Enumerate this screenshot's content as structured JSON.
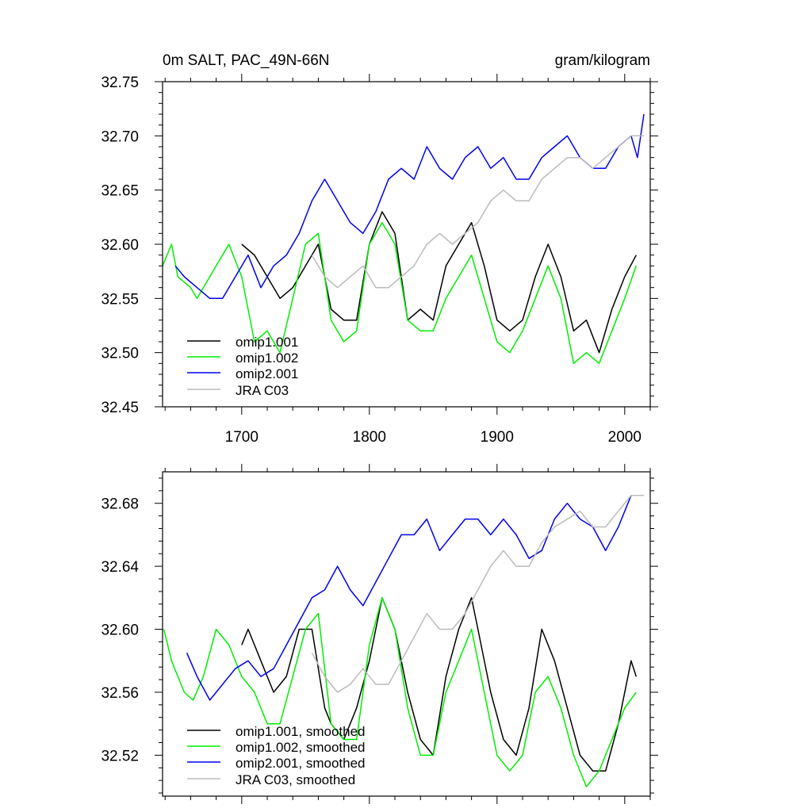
{
  "colors": {
    "omip1_001": "#000000",
    "omip1_002": "#00ee00",
    "omip2_001": "#0000ee",
    "jra": "#bbbbbb",
    "axis": "#000000",
    "background": "#ffffff"
  },
  "chart_data": [
    {
      "type": "line",
      "title": "0m SALT, PAC_49N-66N",
      "units": "gram/kilogram",
      "xlim": [
        1638,
        2020
      ],
      "ylim": [
        32.45,
        32.75
      ],
      "xticks": [
        1700,
        1800,
        1900,
        2000
      ],
      "xtick_labels": [
        "1700",
        "1800",
        "1900",
        "2000"
      ],
      "yticks": [
        32.45,
        32.5,
        32.55,
        32.6,
        32.65,
        32.7,
        32.75
      ],
      "ytick_labels": [
        "32.45",
        "32.50",
        "32.55",
        "32.60",
        "32.65",
        "32.70",
        "32.75"
      ],
      "legend": "bottom-left",
      "series": [
        {
          "name": "omip1.001",
          "key": "omip1_001",
          "x": [
            1700,
            1710,
            1720,
            1730,
            1740,
            1750,
            1760,
            1770,
            1780,
            1790,
            1800,
            1810,
            1820,
            1830,
            1840,
            1850,
            1860,
            1870,
            1880,
            1890,
            1900,
            1910,
            1920,
            1930,
            1940,
            1950,
            1960,
            1970,
            1980,
            1990,
            2000,
            2009
          ],
          "values": [
            32.6,
            32.59,
            32.57,
            32.55,
            32.56,
            32.58,
            32.6,
            32.54,
            32.53,
            32.53,
            32.6,
            32.63,
            32.61,
            32.53,
            32.54,
            32.53,
            32.58,
            32.6,
            32.62,
            32.58,
            32.53,
            32.52,
            32.53,
            32.57,
            32.6,
            32.57,
            32.52,
            32.53,
            32.5,
            32.54,
            32.57,
            32.59
          ]
        },
        {
          "name": "omip1.002",
          "key": "omip1_002",
          "x": [
            1638,
            1645,
            1650,
            1660,
            1665,
            1670,
            1680,
            1690,
            1700,
            1710,
            1720,
            1730,
            1740,
            1750,
            1760,
            1770,
            1780,
            1790,
            1800,
            1810,
            1820,
            1830,
            1840,
            1850,
            1860,
            1870,
            1880,
            1890,
            1900,
            1910,
            1920,
            1930,
            1940,
            1950,
            1960,
            1970,
            1980,
            1990,
            2000,
            2009
          ],
          "values": [
            32.58,
            32.6,
            32.57,
            32.56,
            32.55,
            32.56,
            32.58,
            32.6,
            32.57,
            32.51,
            32.52,
            32.5,
            32.55,
            32.6,
            32.61,
            32.53,
            32.51,
            32.52,
            32.6,
            32.62,
            32.6,
            32.53,
            32.52,
            32.52,
            32.55,
            32.57,
            32.59,
            32.55,
            32.51,
            32.5,
            32.52,
            32.55,
            32.58,
            32.55,
            32.49,
            32.5,
            32.49,
            32.52,
            32.55,
            32.58
          ]
        },
        {
          "name": "omip2.001",
          "key": "omip2_001",
          "x": [
            1648,
            1655,
            1665,
            1675,
            1685,
            1695,
            1705,
            1715,
            1725,
            1735,
            1745,
            1755,
            1765,
            1775,
            1785,
            1795,
            1805,
            1815,
            1825,
            1835,
            1845,
            1855,
            1865,
            1875,
            1885,
            1895,
            1905,
            1915,
            1925,
            1935,
            1945,
            1955,
            1965,
            1975,
            1985,
            1995,
            2005,
            2010,
            2015
          ],
          "values": [
            32.58,
            32.57,
            32.56,
            32.55,
            32.55,
            32.57,
            32.59,
            32.56,
            32.58,
            32.59,
            32.61,
            32.64,
            32.66,
            32.64,
            32.62,
            32.61,
            32.63,
            32.66,
            32.67,
            32.66,
            32.69,
            32.67,
            32.66,
            32.68,
            32.69,
            32.67,
            32.68,
            32.66,
            32.66,
            32.68,
            32.69,
            32.7,
            32.68,
            32.67,
            32.67,
            32.69,
            32.7,
            32.68,
            32.72
          ]
        },
        {
          "name": "JRA C03",
          "key": "jra",
          "x": [
            1755,
            1765,
            1775,
            1785,
            1795,
            1805,
            1815,
            1825,
            1835,
            1845,
            1855,
            1865,
            1875,
            1885,
            1895,
            1905,
            1915,
            1925,
            1935,
            1945,
            1955,
            1965,
            1975,
            1985,
            1995,
            2005,
            2015
          ],
          "values": [
            32.59,
            32.57,
            32.56,
            32.57,
            32.58,
            32.56,
            32.56,
            32.57,
            32.58,
            32.6,
            32.61,
            32.6,
            32.61,
            32.62,
            32.64,
            32.65,
            32.64,
            32.64,
            32.66,
            32.67,
            32.68,
            32.68,
            32.67,
            32.68,
            32.69,
            32.7,
            32.7
          ]
        }
      ]
    },
    {
      "type": "line",
      "title": "",
      "xlim": [
        1638,
        2020
      ],
      "ylim": [
        32.494,
        32.7
      ],
      "xticks": [
        1700,
        1800,
        1900,
        2000
      ],
      "yticks": [
        32.52,
        32.56,
        32.6,
        32.64,
        32.68
      ],
      "ytick_labels": [
        "32.52",
        "32.56",
        "32.60",
        "32.64",
        "32.68"
      ],
      "legend": "bottom-left",
      "series": [
        {
          "name": "omip1.001, smoothed",
          "key": "omip1_001",
          "x": [
            1700,
            1705,
            1715,
            1725,
            1735,
            1745,
            1755,
            1765,
            1770,
            1780,
            1790,
            1800,
            1810,
            1815,
            1820,
            1830,
            1840,
            1850,
            1860,
            1870,
            1880,
            1885,
            1895,
            1905,
            1915,
            1925,
            1935,
            1945,
            1955,
            1965,
            1975,
            1985,
            1995,
            2005,
            2009
          ],
          "values": [
            32.59,
            32.6,
            32.58,
            32.56,
            32.57,
            32.6,
            32.6,
            32.55,
            32.54,
            32.53,
            32.55,
            32.58,
            32.62,
            32.61,
            32.6,
            32.56,
            32.53,
            32.52,
            32.57,
            32.6,
            32.62,
            32.6,
            32.56,
            32.53,
            32.52,
            32.55,
            32.6,
            32.58,
            32.55,
            32.52,
            32.51,
            32.51,
            32.54,
            32.58,
            32.57
          ]
        },
        {
          "name": "omip1.002, smoothed",
          "key": "omip1_002",
          "x": [
            1639,
            1645,
            1650,
            1655,
            1662,
            1670,
            1680,
            1690,
            1700,
            1710,
            1720,
            1730,
            1740,
            1750,
            1760,
            1770,
            1780,
            1790,
            1800,
            1810,
            1815,
            1820,
            1830,
            1840,
            1850,
            1860,
            1870,
            1880,
            1890,
            1900,
            1910,
            1920,
            1930,
            1940,
            1950,
            1960,
            1970,
            1980,
            1990,
            2000,
            2009
          ],
          "values": [
            32.6,
            32.58,
            32.57,
            32.56,
            32.555,
            32.57,
            32.6,
            32.59,
            32.57,
            32.56,
            32.54,
            32.54,
            32.57,
            32.6,
            32.61,
            32.54,
            32.53,
            32.53,
            32.59,
            32.62,
            32.61,
            32.6,
            32.55,
            32.52,
            32.52,
            32.56,
            32.58,
            32.6,
            32.56,
            32.52,
            32.51,
            32.52,
            32.56,
            32.57,
            32.55,
            32.52,
            32.5,
            32.51,
            32.53,
            32.55,
            32.56
          ]
        },
        {
          "name": "omip2.001, smoothed",
          "key": "omip2_001",
          "x": [
            1657,
            1665,
            1675,
            1685,
            1695,
            1705,
            1715,
            1725,
            1735,
            1745,
            1755,
            1765,
            1775,
            1785,
            1795,
            1805,
            1815,
            1825,
            1835,
            1845,
            1855,
            1865,
            1875,
            1885,
            1895,
            1905,
            1915,
            1925,
            1935,
            1945,
            1955,
            1965,
            1975,
            1985,
            1995,
            2005,
            2015
          ],
          "values": [
            32.585,
            32.57,
            32.555,
            32.565,
            32.575,
            32.58,
            32.57,
            32.575,
            32.59,
            32.605,
            32.62,
            32.625,
            32.64,
            32.625,
            32.615,
            32.63,
            32.645,
            32.66,
            32.66,
            32.67,
            32.65,
            32.66,
            32.67,
            32.67,
            32.66,
            32.67,
            32.66,
            32.645,
            32.65,
            32.67,
            32.68,
            32.67,
            32.665,
            32.65,
            32.665,
            32.685,
            32.685
          ]
        },
        {
          "name": "JRA C03, smoothed",
          "key": "jra",
          "x": [
            1755,
            1765,
            1775,
            1785,
            1795,
            1805,
            1815,
            1825,
            1835,
            1845,
            1855,
            1865,
            1875,
            1885,
            1895,
            1905,
            1915,
            1925,
            1935,
            1945,
            1955,
            1965,
            1975,
            1985,
            1995,
            2005,
            2015
          ],
          "values": [
            32.585,
            32.57,
            32.56,
            32.565,
            32.575,
            32.565,
            32.565,
            32.58,
            32.595,
            32.61,
            32.6,
            32.6,
            32.61,
            32.625,
            32.64,
            32.65,
            32.64,
            32.64,
            32.655,
            32.665,
            32.67,
            32.675,
            32.665,
            32.665,
            32.675,
            32.685,
            32.685
          ]
        }
      ]
    }
  ]
}
